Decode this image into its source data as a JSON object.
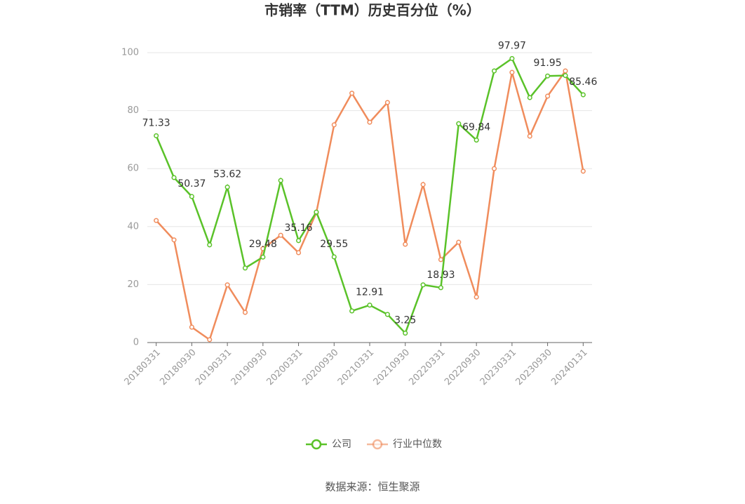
{
  "chart_data": {
    "type": "line",
    "title": "市销率（TTM）历史百分位（%）",
    "categories": [
      "20180331",
      null,
      "20180930",
      null,
      "20190331",
      null,
      "20190930",
      null,
      "20200331",
      null,
      "20200930",
      null,
      "20210331",
      null,
      "20210930",
      null,
      "20220331",
      null,
      "20220930",
      null,
      "20230331",
      null,
      "20230930",
      null,
      "20240131"
    ],
    "series": [
      {
        "name": "公司",
        "color": "#5ac229",
        "values": [
          71.33,
          56.9,
          50.37,
          33.7,
          53.62,
          25.7,
          29.48,
          55.9,
          35.16,
          45.0,
          29.55,
          10.9,
          12.91,
          9.7,
          3.25,
          19.9,
          18.93,
          75.5,
          69.84,
          93.7,
          97.97,
          84.5,
          91.95,
          92.1,
          85.46
        ],
        "value_labels": [
          "71.33",
          null,
          "50.37",
          null,
          "53.62",
          null,
          "29.48",
          null,
          "35.16",
          null,
          "29.55",
          null,
          "12.91",
          null,
          "3.25",
          null,
          "18.93",
          null,
          "69.84",
          null,
          "97.97",
          null,
          "91.95",
          null,
          "85.46"
        ]
      },
      {
        "name": "行业中位数",
        "color": "#f08c5c",
        "values": [
          42.1,
          35.4,
          5.3,
          1.0,
          19.9,
          10.4,
          32.4,
          37.0,
          31.0,
          44.8,
          75.1,
          86.0,
          76.0,
          82.8,
          33.9,
          54.5,
          28.6,
          34.6,
          15.7,
          60.0,
          93.2,
          71.2,
          85.0,
          93.7,
          59.1
        ]
      }
    ],
    "ylim": [
      0,
      100
    ],
    "yticks": [
      0,
      20,
      40,
      60,
      80,
      100
    ],
    "grid": true,
    "source": "数据来源：恒生聚源"
  }
}
